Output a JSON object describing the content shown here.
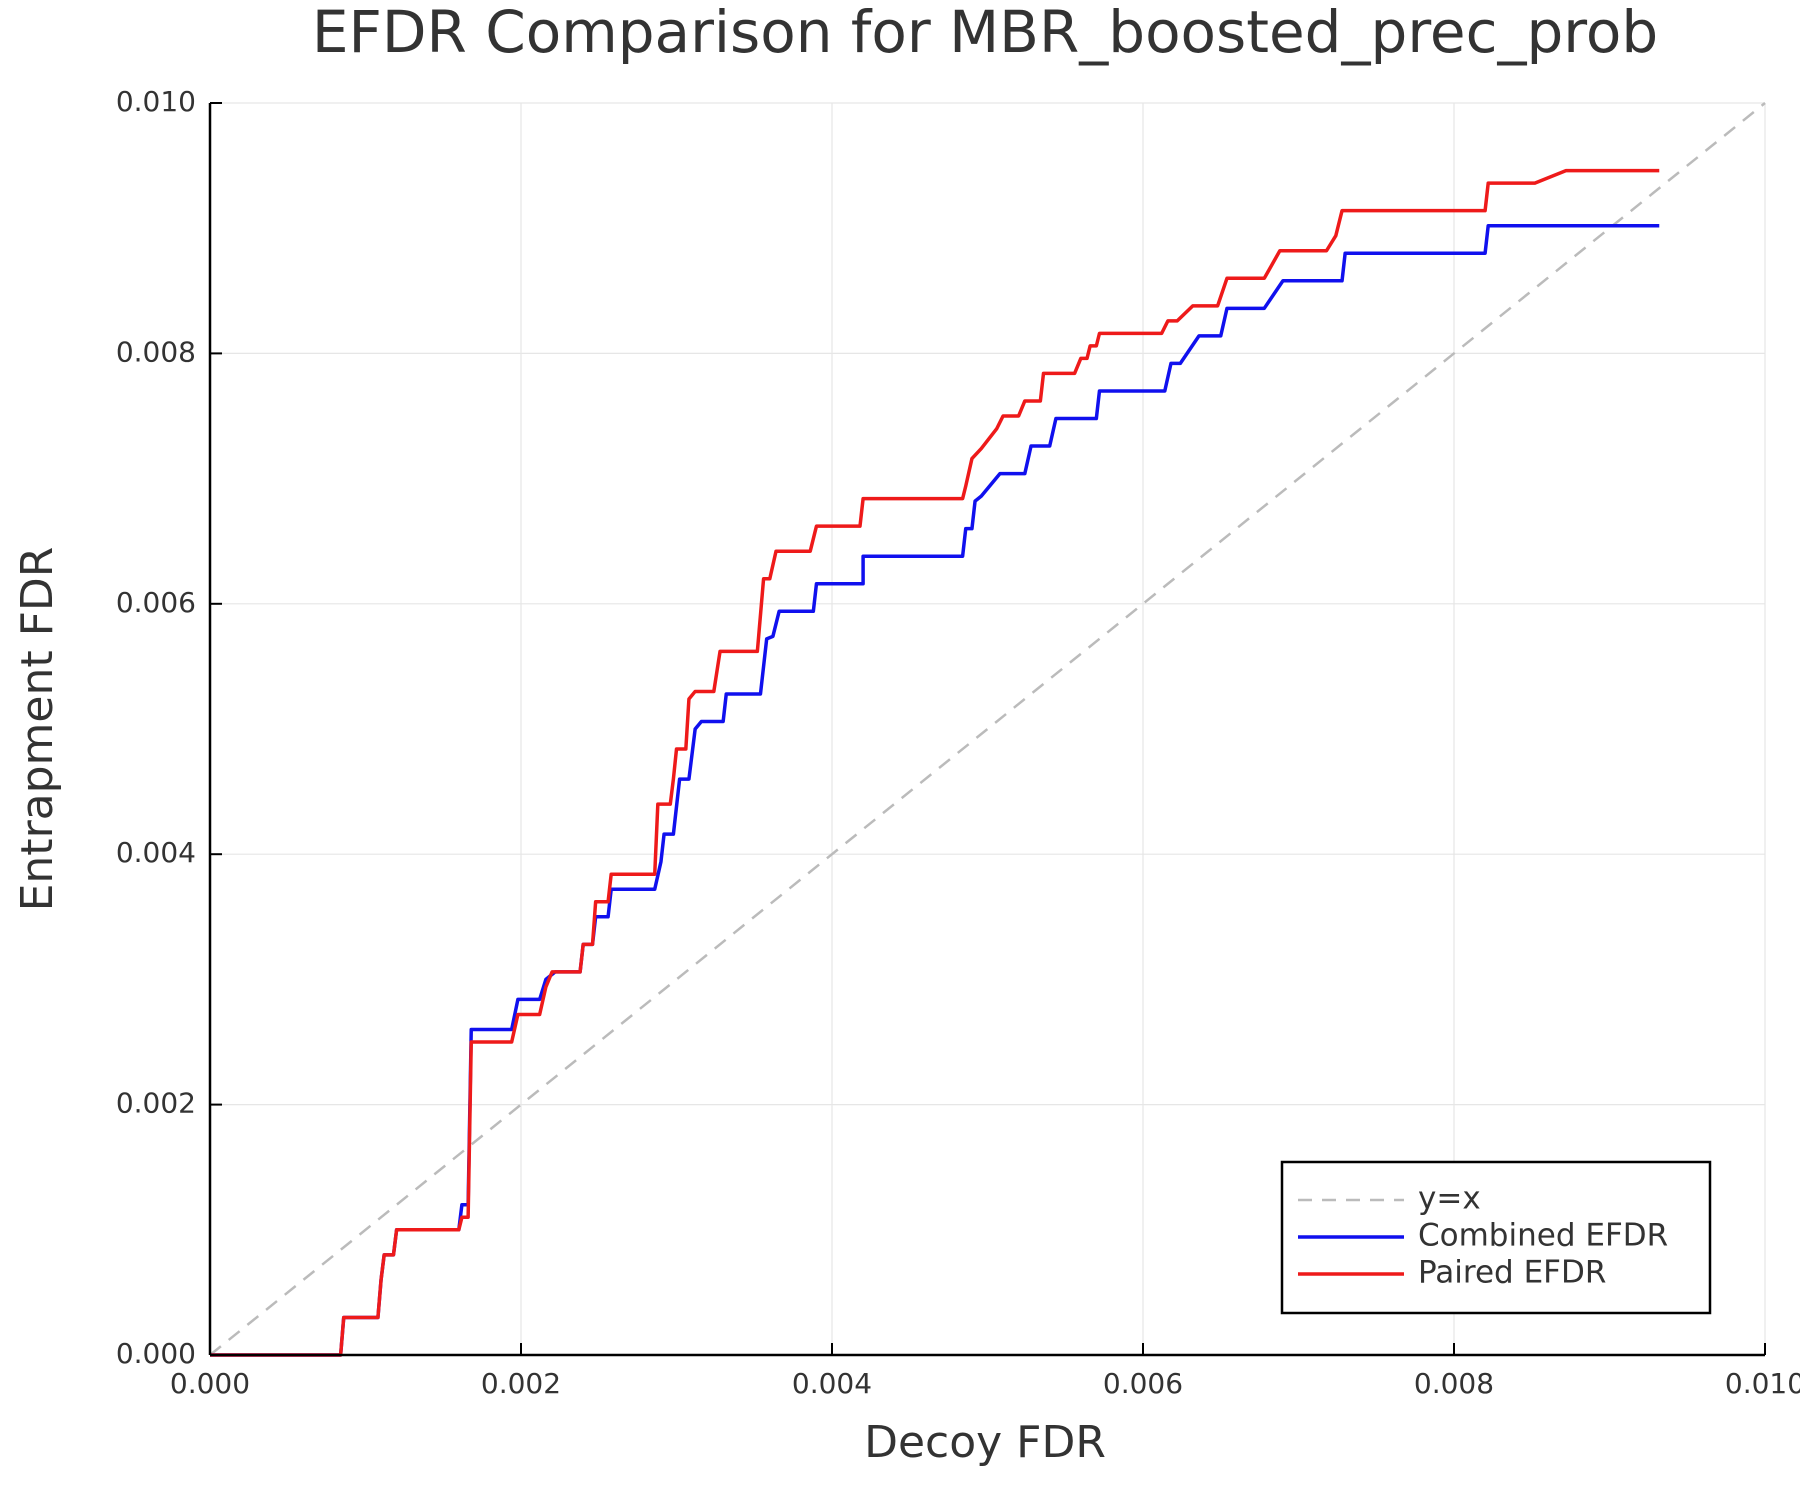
{
  "chart_data": {
    "type": "line",
    "title": "EFDR Comparison for MBR_boosted_prec_prob",
    "x_label": "Decoy FDR",
    "y_label": "Entrapment FDR",
    "xlim": [
      0,
      0.01
    ],
    "ylim": [
      0,
      0.01
    ],
    "xticks": [
      {
        "value": 0,
        "label": "0.000"
      },
      {
        "value": 0.002,
        "label": "0.002"
      },
      {
        "value": 0.004,
        "label": "0.004"
      },
      {
        "value": 0.006,
        "label": "0.006"
      },
      {
        "value": 0.008,
        "label": "0.008"
      },
      {
        "value": 0.01,
        "label": "0.010"
      }
    ],
    "yticks": [
      {
        "value": 0,
        "label": "0.000"
      },
      {
        "value": 0.002,
        "label": "0.002"
      },
      {
        "value": 0.004,
        "label": "0.004"
      },
      {
        "value": 0.006,
        "label": "0.006"
      },
      {
        "value": 0.008,
        "label": "0.008"
      },
      {
        "value": 0.01,
        "label": "0.010"
      }
    ],
    "grid": true,
    "legend": "bottom right",
    "series": [
      {
        "name": "y=x",
        "color": "#bbbbbb",
        "dashed": true,
        "x": [
          0,
          0.01
        ],
        "values": [
          0,
          0.01
        ]
      },
      {
        "name": "Combined EFDR",
        "color": "#1010ee",
        "dashed": false,
        "x": [
          0,
          0.00084,
          0.00086,
          0.00108,
          0.0011,
          0.00112,
          0.00118,
          0.0012,
          0.0016,
          0.00162,
          0.00166,
          0.00168,
          0.00194,
          0.00198,
          0.00212,
          0.00216,
          0.00222,
          0.00238,
          0.0024,
          0.00246,
          0.00248,
          0.00256,
          0.00258,
          0.00286,
          0.0029,
          0.00292,
          0.00298,
          0.003,
          0.00302,
          0.00308,
          0.00312,
          0.00316,
          0.0033,
          0.00332,
          0.00354,
          0.00358,
          0.00362,
          0.00366,
          0.00388,
          0.0039,
          0.0042,
          0.0042,
          0.00484,
          0.00486,
          0.0049,
          0.00492,
          0.00496,
          0.00508,
          0.00524,
          0.00528,
          0.0054,
          0.00544,
          0.0057,
          0.00572,
          0.00614,
          0.00618,
          0.00624,
          0.00636,
          0.0065,
          0.00654,
          0.00678,
          0.0069,
          0.00728,
          0.0073,
          0.0082,
          0.00822,
          0.00932
        ],
        "values": [
          0,
          0,
          0.0003,
          0.0003,
          0.0006,
          0.0008,
          0.0008,
          0.001,
          0.001,
          0.0012,
          0.0012,
          0.0026,
          0.0026,
          0.00284,
          0.00284,
          0.003,
          0.00306,
          0.00306,
          0.00328,
          0.00328,
          0.0035,
          0.0035,
          0.00372,
          0.00372,
          0.00394,
          0.00416,
          0.00416,
          0.00438,
          0.0046,
          0.0046,
          0.005,
          0.00506,
          0.00506,
          0.00528,
          0.00528,
          0.00572,
          0.00574,
          0.00594,
          0.00594,
          0.00616,
          0.00616,
          0.00638,
          0.00638,
          0.0066,
          0.0066,
          0.00682,
          0.00686,
          0.00704,
          0.00704,
          0.00726,
          0.00726,
          0.00748,
          0.00748,
          0.0077,
          0.0077,
          0.00792,
          0.00792,
          0.00814,
          0.00814,
          0.00836,
          0.00836,
          0.00858,
          0.00858,
          0.0088,
          0.0088,
          0.00902,
          0.00902
        ]
      },
      {
        "name": "Paired EFDR",
        "color": "#ee1a1a",
        "dashed": false,
        "x": [
          0,
          0.00084,
          0.00086,
          0.00108,
          0.0011,
          0.00112,
          0.00118,
          0.0012,
          0.0016,
          0.00162,
          0.00166,
          0.00168,
          0.00194,
          0.00198,
          0.00212,
          0.00216,
          0.0022,
          0.00238,
          0.0024,
          0.00246,
          0.00248,
          0.00256,
          0.00258,
          0.00286,
          0.00288,
          0.00296,
          0.00298,
          0.003,
          0.00306,
          0.00308,
          0.00312,
          0.00324,
          0.00328,
          0.00352,
          0.00356,
          0.0036,
          0.00364,
          0.00386,
          0.0039,
          0.00418,
          0.0042,
          0.00484,
          0.00486,
          0.0049,
          0.00496,
          0.00506,
          0.0051,
          0.0052,
          0.00524,
          0.00534,
          0.00536,
          0.00556,
          0.0056,
          0.00564,
          0.00566,
          0.0057,
          0.00572,
          0.00612,
          0.00616,
          0.00622,
          0.00632,
          0.00648,
          0.00654,
          0.00678,
          0.00688,
          0.00718,
          0.00724,
          0.00728,
          0.0082,
          0.00822,
          0.00852,
          0.00872,
          0.00932
        ],
        "values": [
          0,
          0,
          0.0003,
          0.0003,
          0.0006,
          0.0008,
          0.0008,
          0.001,
          0.001,
          0.0011,
          0.0011,
          0.0025,
          0.0025,
          0.00272,
          0.00272,
          0.00294,
          0.00306,
          0.00306,
          0.00328,
          0.00328,
          0.00362,
          0.00362,
          0.00384,
          0.00384,
          0.0044,
          0.0044,
          0.0046,
          0.00484,
          0.00484,
          0.00524,
          0.0053,
          0.0053,
          0.00562,
          0.00562,
          0.0062,
          0.0062,
          0.00642,
          0.00642,
          0.00662,
          0.00662,
          0.00684,
          0.00684,
          0.00694,
          0.00716,
          0.00724,
          0.0074,
          0.0075,
          0.0075,
          0.00762,
          0.00762,
          0.00784,
          0.00784,
          0.00796,
          0.00796,
          0.00806,
          0.00806,
          0.00816,
          0.00816,
          0.00826,
          0.00826,
          0.00838,
          0.00838,
          0.0086,
          0.0086,
          0.00882,
          0.00882,
          0.00894,
          0.00914,
          0.00914,
          0.00936,
          0.00936,
          0.00946,
          0.00946
        ]
      }
    ]
  }
}
